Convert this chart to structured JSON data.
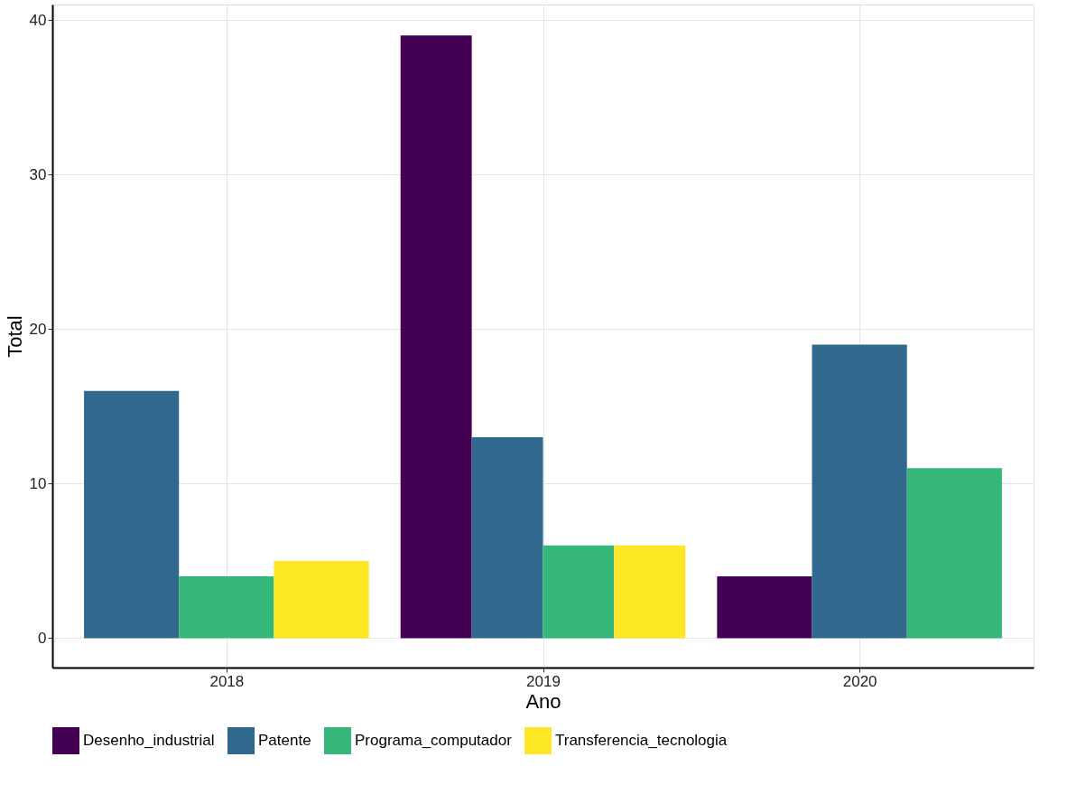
{
  "chart_data": {
    "type": "bar",
    "xlabel": "Ano",
    "ylabel": "Total",
    "categories": [
      "2018",
      "2019",
      "2020"
    ],
    "series": [
      {
        "name": "Desenho_industrial",
        "color": "#440154",
        "values": [
          null,
          39,
          4
        ]
      },
      {
        "name": "Patente",
        "color": "#31688e",
        "values": [
          16,
          13,
          19
        ]
      },
      {
        "name": "Programa_computador",
        "color": "#35b779",
        "values": [
          4,
          6,
          11
        ]
      },
      {
        "name": "Transferencia_tecnologia",
        "color": "#fde725",
        "values": [
          5,
          6,
          null
        ]
      }
    ],
    "ylim": [
      -1.9,
      41
    ],
    "yticks": [
      0,
      10,
      20,
      30,
      40
    ],
    "grid": true,
    "legend": "bottom"
  }
}
